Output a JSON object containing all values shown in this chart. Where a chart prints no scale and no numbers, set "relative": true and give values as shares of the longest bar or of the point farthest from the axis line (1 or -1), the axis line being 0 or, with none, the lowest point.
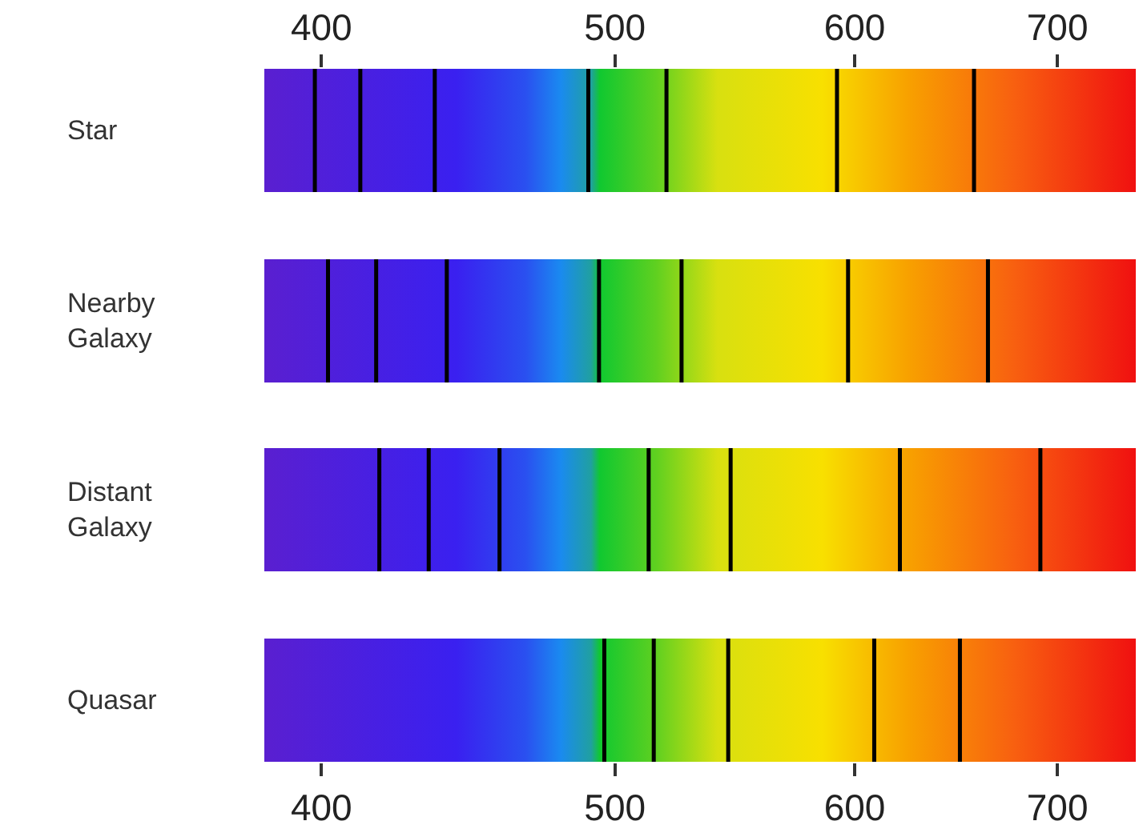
{
  "chart_data": [
    {
      "type": "line",
      "ylabel": "Star",
      "log": "x",
      "relative": true,
      "xlim": [
        383,
        743
      ],
      "xticks": [
        400,
        500,
        600,
        700
      ],
      "tick_labels": "x",
      "series": [
        {
          "color": "#000000",
          "x": [
            398,
            398
          ],
          "values": [
            0,
            1
          ]
        },
        {
          "color": "#000000",
          "x": [
            412,
            412
          ],
          "values": [
            0,
            1
          ]
        },
        {
          "color": "#000000",
          "x": [
            436,
            436
          ],
          "values": [
            0,
            1
          ]
        },
        {
          "color": "#000000",
          "x": [
            490,
            490
          ],
          "values": [
            0,
            1
          ]
        },
        {
          "color": "#000000",
          "x": [
            520,
            520
          ],
          "values": [
            0,
            1
          ]
        },
        {
          "color": "#000000",
          "x": [
            592,
            592
          ],
          "values": [
            0,
            1
          ]
        },
        {
          "color": "#000000",
          "x": [
            657,
            657
          ],
          "values": [
            0,
            1
          ]
        }
      ]
    },
    {
      "type": "line",
      "ylabel": "Nearby Galaxy",
      "log": "x",
      "relative": true,
      "xlim": [
        383,
        743
      ],
      "tick_labels": false,
      "series": [
        {
          "color": "#000000",
          "x": [
            402,
            402
          ],
          "values": [
            0,
            1
          ]
        },
        {
          "color": "#000000",
          "x": [
            417,
            417
          ],
          "values": [
            0,
            1
          ]
        },
        {
          "color": "#000000",
          "x": [
            440,
            440
          ],
          "values": [
            0,
            1
          ]
        },
        {
          "color": "#000000",
          "x": [
            494,
            494
          ],
          "values": [
            0,
            1
          ]
        },
        {
          "color": "#000000",
          "x": [
            526,
            526
          ],
          "values": [
            0,
            1
          ]
        },
        {
          "color": "#000000",
          "x": [
            597,
            597
          ],
          "values": [
            0,
            1
          ]
        },
        {
          "color": "#000000",
          "x": [
            664,
            664
          ],
          "values": [
            0,
            1
          ]
        }
      ]
    },
    {
      "type": "line",
      "ylabel": "Distant Galaxy",
      "log": "x",
      "relative": true,
      "xlim": [
        383,
        743
      ],
      "tick_labels": false,
      "series": [
        {
          "color": "#000000",
          "x": [
            418,
            418
          ],
          "values": [
            0,
            1
          ]
        },
        {
          "color": "#000000",
          "x": [
            434,
            434
          ],
          "values": [
            0,
            1
          ]
        },
        {
          "color": "#000000",
          "x": [
            458,
            458
          ],
          "values": [
            0,
            1
          ]
        },
        {
          "color": "#000000",
          "x": [
            513,
            513
          ],
          "values": [
            0,
            1
          ]
        },
        {
          "color": "#000000",
          "x": [
            546,
            546
          ],
          "values": [
            0,
            1
          ]
        },
        {
          "color": "#000000",
          "x": [
            621,
            621
          ],
          "values": [
            0,
            1
          ]
        },
        {
          "color": "#000000",
          "x": [
            691,
            691
          ],
          "values": [
            0,
            1
          ]
        }
      ]
    },
    {
      "type": "line",
      "ylabel": "Quasar",
      "log": "x",
      "relative": true,
      "xlim": [
        383,
        743
      ],
      "xticks": [
        400,
        500,
        600,
        700
      ],
      "tick_labels": "x",
      "series": [
        {
          "color": "#000000",
          "x": [
            496,
            496
          ],
          "values": [
            0,
            1
          ]
        },
        {
          "color": "#000000",
          "x": [
            515,
            515
          ],
          "values": [
            0,
            1
          ]
        },
        {
          "color": "#000000",
          "x": [
            545,
            545
          ],
          "values": [
            0,
            1
          ]
        },
        {
          "color": "#000000",
          "x": [
            609,
            609
          ],
          "values": [
            0,
            1
          ]
        },
        {
          "color": "#000000",
          "x": [
            650,
            650
          ],
          "values": [
            0,
            1
          ]
        }
      ]
    }
  ]
}
